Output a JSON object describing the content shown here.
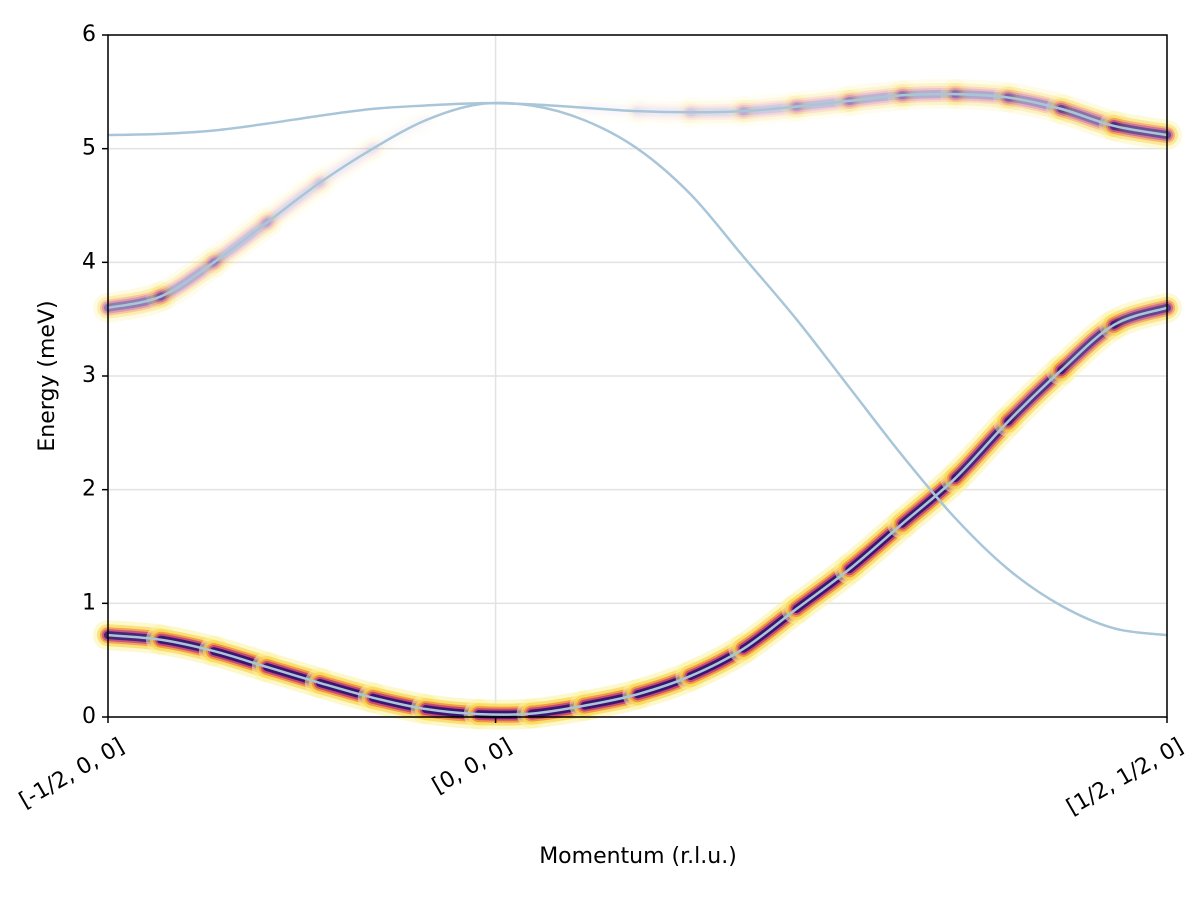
{
  "chart_data": {
    "type": "line",
    "x_label": "Momentum (r.l.u.)",
    "y_label": "Energy (meV)",
    "x": [
      0,
      0.05,
      0.1,
      0.15,
      0.2,
      0.25,
      0.3,
      0.35,
      0.4,
      0.45,
      0.5,
      0.55,
      0.6,
      0.65,
      0.7,
      0.75,
      0.8,
      0.85,
      0.9,
      0.95,
      1
    ],
    "series": [
      {
        "color": "#a9c6d9",
        "values": [
          5.12,
          5.13,
          5.16,
          5.22,
          5.29,
          5.35,
          5.38,
          5.4,
          5.39,
          5.36,
          5.33,
          5.32,
          5.33,
          5.37,
          5.42,
          5.47,
          5.48,
          5.45,
          5.35,
          5.2,
          5.12
        ],
        "intensity": [
          0,
          0,
          0,
          0,
          0,
          0,
          0,
          0,
          0,
          0,
          0.05,
          0.1,
          0.2,
          0.25,
          0.3,
          0.35,
          0.35,
          0.4,
          0.5,
          0.7,
          0.8
        ]
      },
      {
        "color": "#a9c6d9",
        "values": [
          3.6,
          3.7,
          4.0,
          4.35,
          4.7,
          5.0,
          5.25,
          5.39,
          5.38,
          5.25,
          5.0,
          4.6,
          4.05,
          3.5,
          2.9,
          2.3,
          1.75,
          1.3,
          0.98,
          0.78,
          0.72
        ],
        "intensity": [
          0.7,
          0.4,
          0.3,
          0.2,
          0.1,
          0.05,
          0,
          0,
          0,
          0,
          0,
          0,
          0,
          0,
          0,
          0,
          0,
          0,
          0,
          0,
          0
        ]
      },
      {
        "color": "#a9c6d9",
        "values": [
          0.72,
          0.68,
          0.58,
          0.44,
          0.3,
          0.17,
          0.07,
          0.025,
          0.03,
          0.1,
          0.2,
          0.36,
          0.6,
          0.95,
          1.3,
          1.7,
          2.1,
          2.6,
          3.05,
          3.45,
          3.6
        ],
        "intensity": [
          0.9,
          0.95,
          1,
          1,
          1,
          1,
          1,
          1,
          1,
          1,
          1,
          1,
          1,
          1,
          1,
          1,
          0.95,
          0.9,
          0.85,
          0.8,
          0.8
        ]
      }
    ],
    "xlim": [
      0,
      1
    ],
    "xticks": [
      {
        "value": 0,
        "label": "[-1/2, 0, 0]"
      },
      {
        "value": 0.366,
        "label": "[0, 0, 0]"
      },
      {
        "value": 1,
        "label": "[1/2, 1/2, 0]"
      }
    ],
    "ylim": [
      0,
      6
    ],
    "yticks": [
      0,
      1,
      2,
      3,
      4,
      5,
      6
    ],
    "grid": true
  }
}
